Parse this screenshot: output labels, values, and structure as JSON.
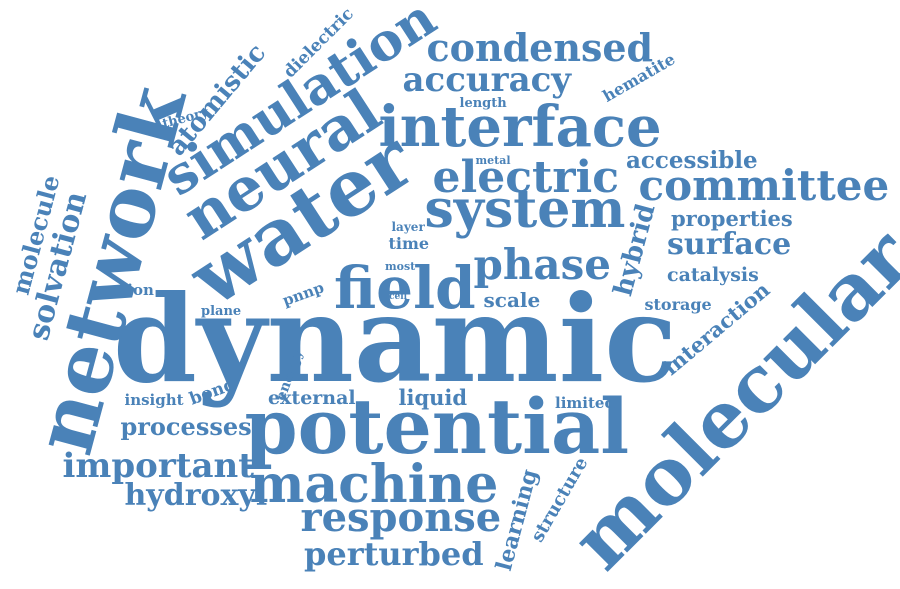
{
  "color": "#4a82b8",
  "words": [
    "dynamic",
    "potential",
    "molecular",
    "network",
    "water",
    "neural",
    "simulation",
    "interface",
    "system",
    "field",
    "electric",
    "committee",
    "machine",
    "phase",
    "response",
    "condensed",
    "accuracy",
    "important",
    "perturbed",
    "surface",
    "hydroxyl",
    "solvation",
    "processes",
    "properties",
    "hybrid",
    "atomistic",
    "molecule",
    "accessible",
    "learning",
    "interaction",
    "structure",
    "catalysis",
    "external",
    "liquid",
    "scale",
    "dielectric",
    "hematite",
    "storage",
    "theory",
    "energy",
    "insight",
    "bond",
    "motion",
    "plane",
    "pnnp",
    "time",
    "limited",
    "layer",
    "length",
    "metal",
    "most",
    "cell"
  ]
}
